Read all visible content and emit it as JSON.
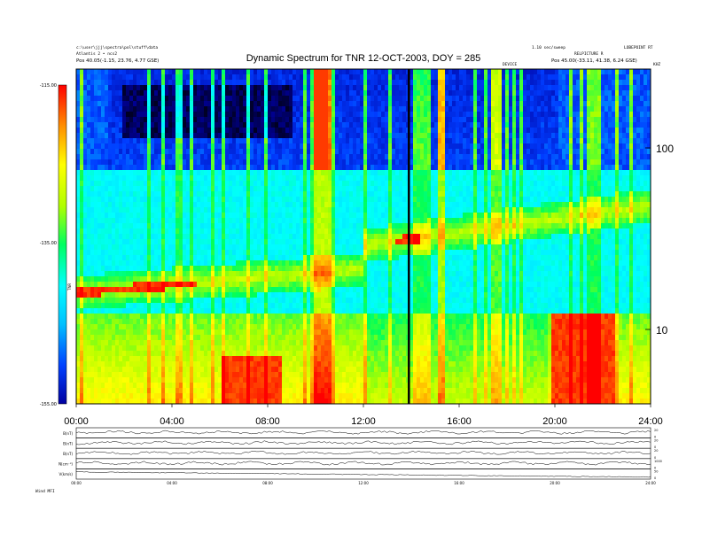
{
  "chart_data": {
    "type": "heatmap",
    "title": "Dynamic Spectrum for TNR 12-OCT-2003, DOY = 285",
    "header": {
      "left_line1": "c:\\user\\jjj\\spectra\\pol\\stuff\\data",
      "left_line2": "Atlantis 2 • ncs2",
      "left_line3": "Pos   40.05(-1.15, 23.76, 4.77 GSE)",
      "right_line1": "1.10 sec/sweep",
      "right_line2": "Pos   45.00(-33.11, 41.38, 6.24 GSE)",
      "right_top": "LOBEPOINT RT",
      "right_small": "RELPICTURE R",
      "units_label": "KHZ",
      "center_small": "DEVICE"
    },
    "colorbar": {
      "ticks": [
        "-115.00",
        "-135.00",
        "-155.00"
      ],
      "label": "TNR"
    },
    "x_axis": {
      "ticks": [
        "00:00",
        "04:00",
        "08:00",
        "12:00",
        "16:00",
        "20:00",
        "24:00"
      ],
      "range_hours": [
        0,
        24
      ]
    },
    "y_axis": {
      "scale": "log",
      "ticks": [
        "100",
        "10"
      ],
      "unit": "kHz"
    },
    "marker_hours": 13.9,
    "panels": [
      {
        "label": "B(nT)",
        "right_ticks": [
          "20",
          "0"
        ]
      },
      {
        "label": "B(nT)",
        "right_ticks": [
          "20",
          "0"
        ]
      },
      {
        "label": "B(nT)",
        "right_ticks": [
          "20",
          "0"
        ]
      },
      {
        "label": "N(cm⁻³)",
        "right_ticks": [
          "1000",
          "0"
        ]
      },
      {
        "label": "V(km/s)",
        "right_ticks": [
          "50",
          "0"
        ]
      }
    ],
    "bottom_ticks": [
      "00:00",
      "04:00",
      "08:00",
      "12:00",
      "16:00",
      "20:00",
      "24:00"
    ],
    "bottom_note": "Wind    MFI"
  }
}
